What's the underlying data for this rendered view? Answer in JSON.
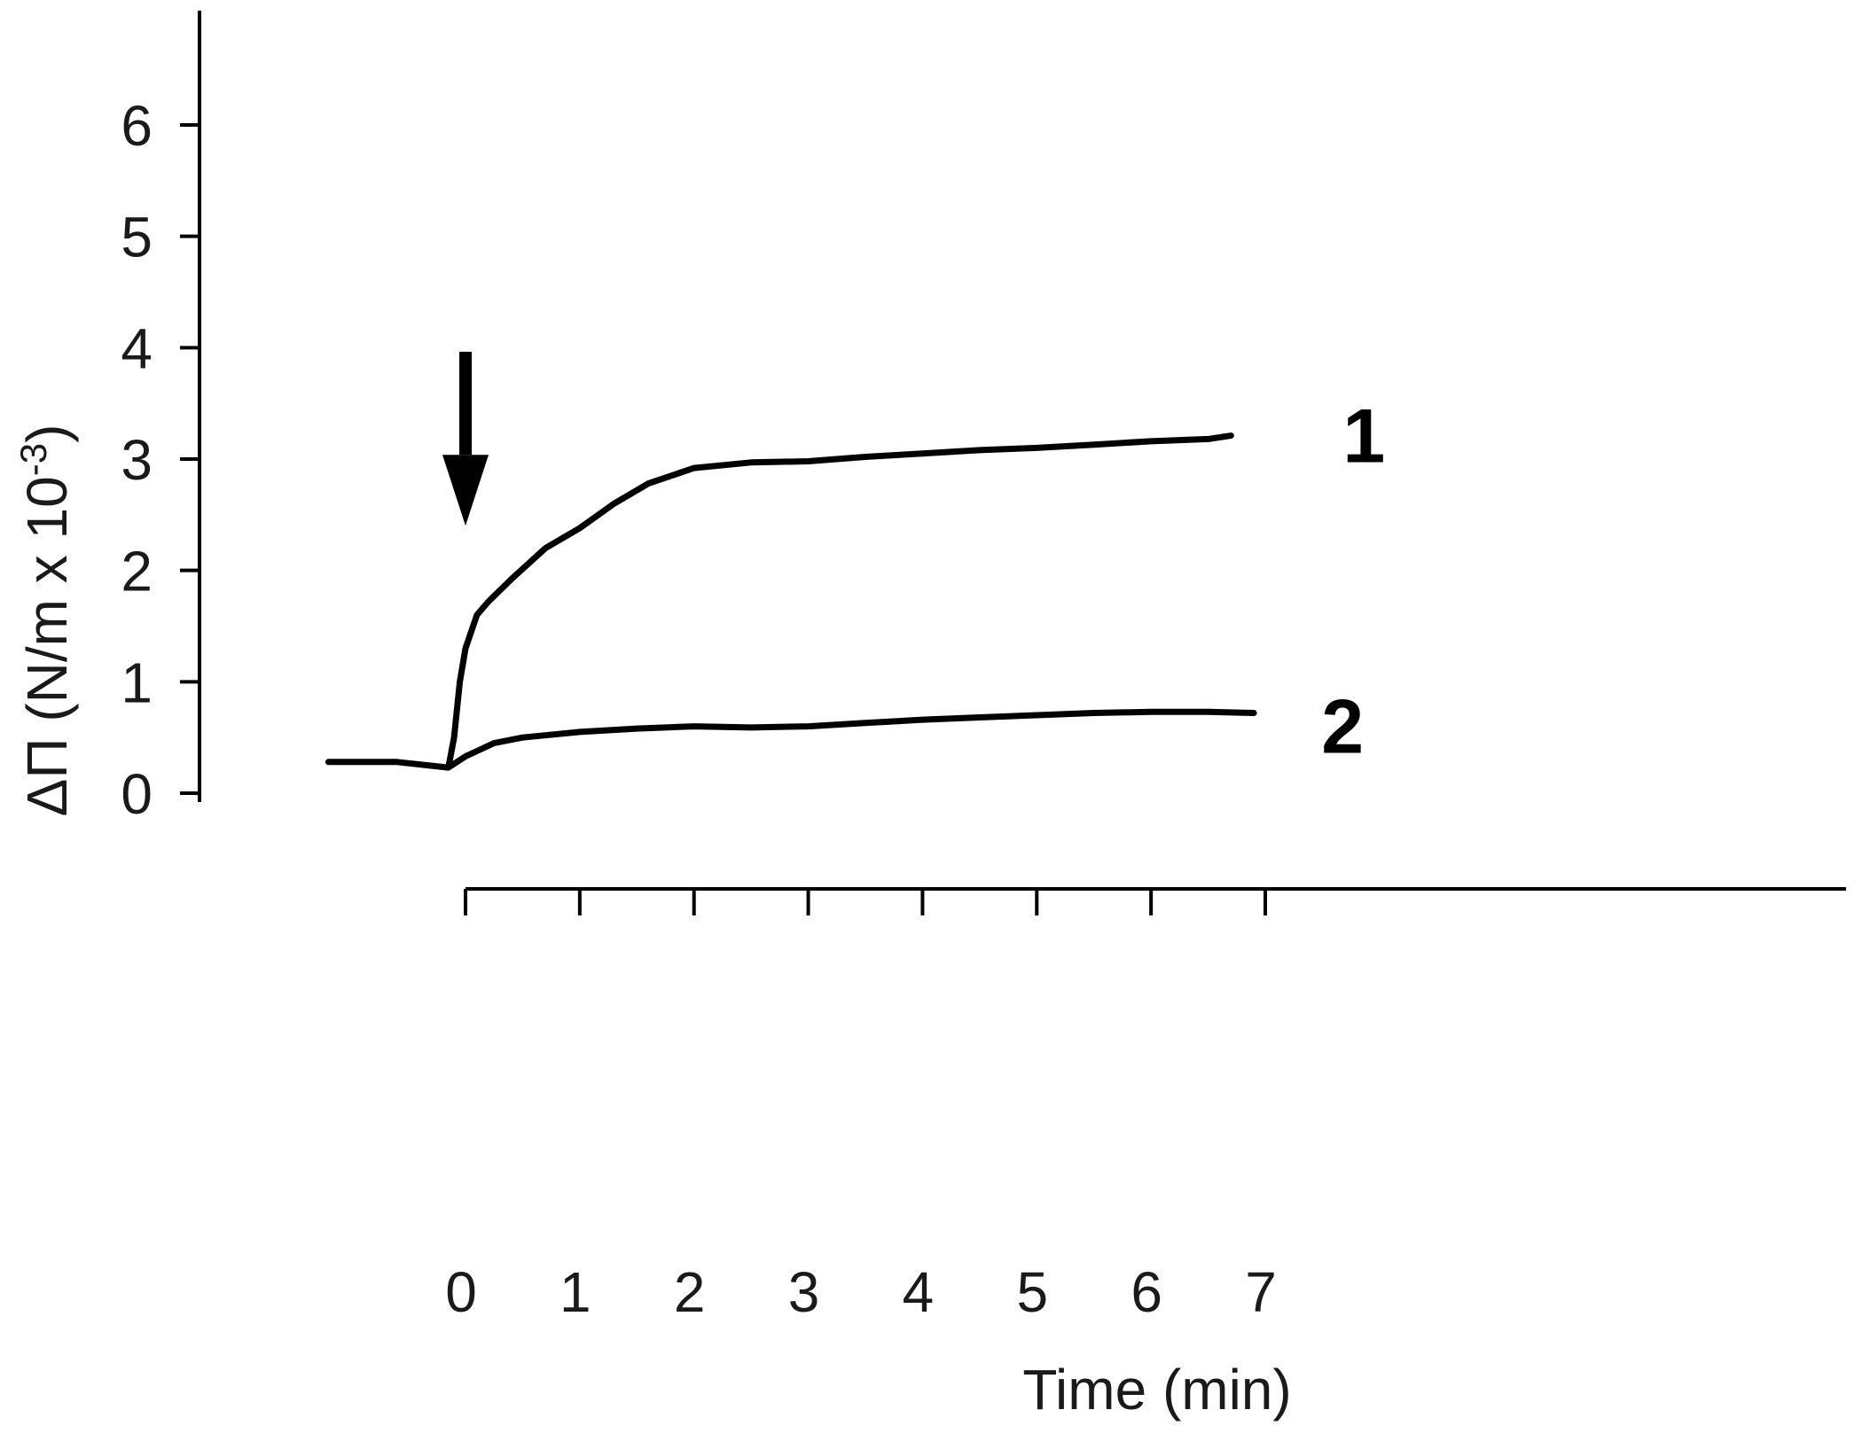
{
  "chart_data": {
    "type": "line",
    "xlabel": "Time (min)",
    "ylabel": {
      "base": "ΔΠ (N/m x 10",
      "sup": "-3",
      "close": ")"
    },
    "xlim": [
      -1.2,
      7.9
    ],
    "ylim": [
      0,
      7
    ],
    "x_ticks": [
      "0",
      "1",
      "2",
      "3",
      "4",
      "5",
      "6",
      "7"
    ],
    "y_ticks": [
      "0",
      "1",
      "2",
      "3",
      "4",
      "5",
      "6"
    ],
    "grid": false,
    "legend": "none",
    "annotations": [
      {
        "type": "arrow",
        "x": 0.0,
        "y_from": 3.9,
        "y_to": 2.6
      }
    ],
    "series": [
      {
        "name": "1",
        "points": [
          [
            -1.2,
            0.28
          ],
          [
            -0.6,
            0.28
          ],
          [
            -0.15,
            0.23
          ],
          [
            -0.1,
            0.5
          ],
          [
            -0.05,
            1.0
          ],
          [
            0.0,
            1.3
          ],
          [
            0.1,
            1.6
          ],
          [
            0.2,
            1.72
          ],
          [
            0.4,
            1.92
          ],
          [
            0.7,
            2.2
          ],
          [
            1.0,
            2.38
          ],
          [
            1.3,
            2.6
          ],
          [
            1.6,
            2.78
          ],
          [
            2.0,
            2.92
          ],
          [
            2.5,
            2.97
          ],
          [
            3.0,
            2.98
          ],
          [
            3.5,
            3.02
          ],
          [
            4.0,
            3.05
          ],
          [
            4.5,
            3.08
          ],
          [
            5.0,
            3.1
          ],
          [
            5.5,
            3.13
          ],
          [
            6.0,
            3.16
          ],
          [
            6.5,
            3.18
          ],
          [
            6.7,
            3.21
          ]
        ]
      },
      {
        "name": "2",
        "points": [
          [
            -0.15,
            0.23
          ],
          [
            0.0,
            0.33
          ],
          [
            0.25,
            0.45
          ],
          [
            0.5,
            0.5
          ],
          [
            1.0,
            0.55
          ],
          [
            1.5,
            0.58
          ],
          [
            2.0,
            0.6
          ],
          [
            2.5,
            0.59
          ],
          [
            3.0,
            0.6
          ],
          [
            3.5,
            0.63
          ],
          [
            4.0,
            0.66
          ],
          [
            4.5,
            0.68
          ],
          [
            5.0,
            0.7
          ],
          [
            5.5,
            0.72
          ],
          [
            6.0,
            0.73
          ],
          [
            6.5,
            0.73
          ],
          [
            6.9,
            0.72
          ]
        ]
      }
    ]
  },
  "colors": {
    "line": "#000000",
    "text": "#1a1a1a",
    "background": "#ffffff"
  }
}
